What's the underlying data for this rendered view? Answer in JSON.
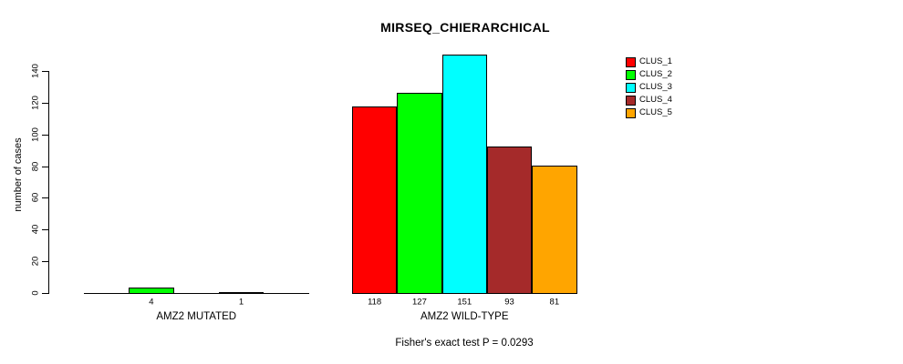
{
  "chart_data": {
    "type": "bar",
    "title": "MIRSEQ_CHIERARCHICAL",
    "ylabel": "number of cases",
    "xlabel": "",
    "ylim": [
      0,
      140
    ],
    "yticks": [
      0,
      20,
      40,
      60,
      80,
      100,
      120,
      140
    ],
    "grid": false,
    "legend_position": "top-right",
    "categories": [
      "AMZ2 MUTATED",
      "AMZ2 WILD-TYPE"
    ],
    "series": [
      {
        "name": "CLUS_1",
        "color": "#FF0000",
        "values": [
          0,
          118
        ]
      },
      {
        "name": "CLUS_2",
        "color": "#00FF00",
        "values": [
          4,
          127
        ]
      },
      {
        "name": "CLUS_3",
        "color": "#00FFFF",
        "values": [
          0,
          151
        ]
      },
      {
        "name": "CLUS_4",
        "color": "#A52A2A",
        "values": [
          1,
          93
        ]
      },
      {
        "name": "CLUS_5",
        "color": "#FFA500",
        "values": [
          0,
          81
        ]
      }
    ],
    "annotation": "Fisher's exact test P = 0.0293"
  }
}
